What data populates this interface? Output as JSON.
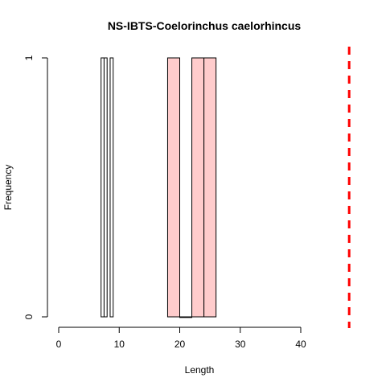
{
  "chart_data": {
    "type": "bar",
    "title": "NS-IBTS-Coelorinchus caelorhincus",
    "xlabel": "Length",
    "ylabel": "Frequency",
    "xlim": [
      0,
      40
    ],
    "ylim": [
      0,
      1
    ],
    "x_ticks": [
      "0",
      "10",
      "20",
      "30",
      "40"
    ],
    "y_ticks": [
      "0",
      "1"
    ],
    "grid": false,
    "legend": "none",
    "series": [
      {
        "color": "#ffffff",
        "bins": [
          {
            "x0": 7,
            "x1": 7.5,
            "value": 1
          },
          {
            "x0": 7.5,
            "x1": 8,
            "value": 1
          },
          {
            "x0": 8.5,
            "x1": 9,
            "value": 1
          }
        ]
      },
      {
        "color": "#ffcccc",
        "bins": [
          {
            "x0": 18,
            "x1": 20,
            "value": 1
          },
          {
            "x0": 20,
            "x1": 22,
            "value": 0
          },
          {
            "x0": 22,
            "x1": 24,
            "value": 1
          },
          {
            "x0": 24,
            "x1": 26,
            "value": 1
          }
        ]
      }
    ],
    "reference_line": {
      "x": 48,
      "color": "#ff0000",
      "style": "dashed"
    }
  }
}
